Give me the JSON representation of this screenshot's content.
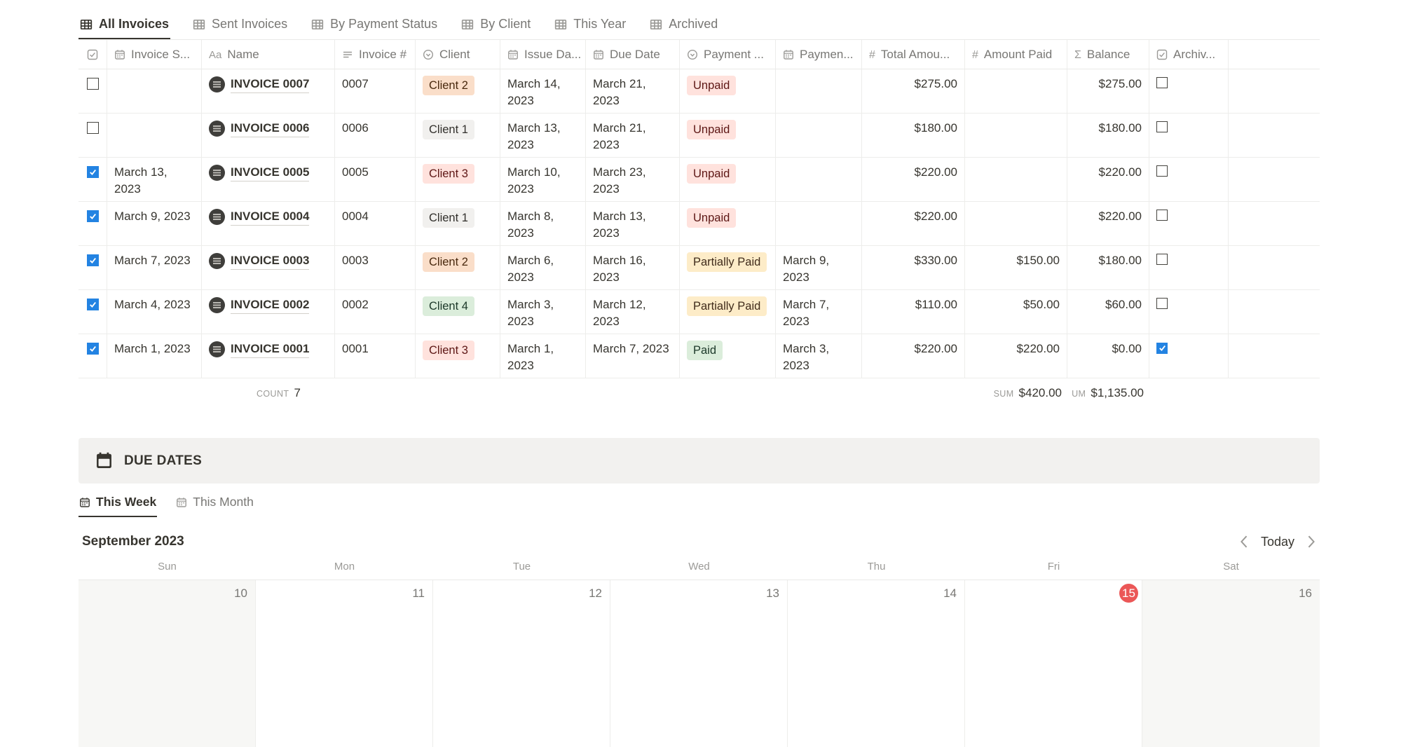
{
  "colors": {
    "accent_blue": "#2383E2",
    "today_red": "#EB5757",
    "active_text": "#37352F",
    "muted_text": "#787774",
    "tags": {
      "orange": {
        "bg": "#FADEC9",
        "text": "#49290E"
      },
      "gray": {
        "bg": "#F1F0EE",
        "text": "#32302C"
      },
      "red": {
        "bg": "#FFE2DD",
        "text": "#5D1715"
      },
      "green": {
        "bg": "#DBEDDB",
        "text": "#1C3829"
      },
      "yellow": {
        "bg": "#FDECC8",
        "text": "#402C1B"
      }
    }
  },
  "view_tabs": [
    {
      "label": "All Invoices",
      "icon": "table-icon",
      "active": true
    },
    {
      "label": "Sent Invoices",
      "icon": "table-icon",
      "active": false
    },
    {
      "label": "By Payment Status",
      "icon": "table-icon",
      "active": false
    },
    {
      "label": "By Client",
      "icon": "table-icon",
      "active": false
    },
    {
      "label": "This Year",
      "icon": "table-icon",
      "active": false
    },
    {
      "label": "Archived",
      "icon": "table-icon",
      "active": false
    }
  ],
  "table": {
    "columns": [
      {
        "key": "select",
        "label": "",
        "icon": "checkbox-icon"
      },
      {
        "key": "invoice_sent",
        "label": "Invoice S...",
        "icon": "calendar-icon"
      },
      {
        "key": "name",
        "label": "Name",
        "icon": "aa-icon"
      },
      {
        "key": "invoice_num",
        "label": "Invoice #",
        "icon": "lines-icon"
      },
      {
        "key": "client",
        "label": "Client",
        "icon": "select-icon"
      },
      {
        "key": "issue_date",
        "label": "Issue Da...",
        "icon": "calendar-icon"
      },
      {
        "key": "due_date",
        "label": "Due Date",
        "icon": "calendar-icon"
      },
      {
        "key": "payment_status",
        "label": "Payment ...",
        "icon": "select-icon"
      },
      {
        "key": "payment_date",
        "label": "Paymen...",
        "icon": "calendar-icon"
      },
      {
        "key": "total_amount",
        "label": "Total Amou...",
        "icon": "hash-icon",
        "align": "num"
      },
      {
        "key": "amount_paid",
        "label": "Amount Paid",
        "icon": "hash-icon",
        "align": "num"
      },
      {
        "key": "balance",
        "label": "Balance",
        "icon": "sigma-icon",
        "align": "num"
      },
      {
        "key": "archived",
        "label": "Archiv...",
        "icon": "checkbox-icon"
      },
      {
        "key": "spacer",
        "label": "",
        "icon": ""
      }
    ],
    "rows": [
      {
        "selected": false,
        "invoice_sent": "",
        "name": "INVOICE 0007",
        "invoice_num": "0007",
        "client": {
          "label": "Client 2",
          "color": "orange"
        },
        "issue_date": "March 14, 2023",
        "due_date": "March 21, 2023",
        "payment_status": {
          "label": "Unpaid",
          "color": "red"
        },
        "payment_date": "",
        "total_amount": "$275.00",
        "amount_paid": "",
        "balance": "$275.00",
        "archived": false
      },
      {
        "selected": false,
        "invoice_sent": "",
        "name": "INVOICE 0006",
        "invoice_num": "0006",
        "client": {
          "label": "Client 1",
          "color": "gray"
        },
        "issue_date": "March 13, 2023",
        "due_date": "March 21, 2023",
        "payment_status": {
          "label": "Unpaid",
          "color": "red"
        },
        "payment_date": "",
        "total_amount": "$180.00",
        "amount_paid": "",
        "balance": "$180.00",
        "archived": false
      },
      {
        "selected": true,
        "invoice_sent": "March 13, 2023",
        "name": "INVOICE 0005",
        "invoice_num": "0005",
        "client": {
          "label": "Client 3",
          "color": "red"
        },
        "issue_date": "March 10, 2023",
        "due_date": "March 23, 2023",
        "payment_status": {
          "label": "Unpaid",
          "color": "red"
        },
        "payment_date": "",
        "total_amount": "$220.00",
        "amount_paid": "",
        "balance": "$220.00",
        "archived": false
      },
      {
        "selected": true,
        "invoice_sent": "March 9, 2023",
        "name": "INVOICE 0004",
        "invoice_num": "0004",
        "client": {
          "label": "Client 1",
          "color": "gray"
        },
        "issue_date": "March 8, 2023",
        "due_date": "March 13, 2023",
        "payment_status": {
          "label": "Unpaid",
          "color": "red"
        },
        "payment_date": "",
        "total_amount": "$220.00",
        "amount_paid": "",
        "balance": "$220.00",
        "archived": false
      },
      {
        "selected": true,
        "invoice_sent": "March 7, 2023",
        "name": "INVOICE 0003",
        "invoice_num": "0003",
        "client": {
          "label": "Client 2",
          "color": "orange"
        },
        "issue_date": "March 6, 2023",
        "due_date": "March 16, 2023",
        "payment_status": {
          "label": "Partially Paid",
          "color": "yellow"
        },
        "payment_date": "March 9, 2023",
        "total_amount": "$330.00",
        "amount_paid": "$150.00",
        "balance": "$180.00",
        "archived": false
      },
      {
        "selected": true,
        "invoice_sent": "March 4, 2023",
        "name": "INVOICE 0002",
        "invoice_num": "0002",
        "client": {
          "label": "Client 4",
          "color": "green"
        },
        "issue_date": "March 3, 2023",
        "due_date": "March 12, 2023",
        "payment_status": {
          "label": "Partially Paid",
          "color": "yellow"
        },
        "payment_date": "March 7, 2023",
        "total_amount": "$110.00",
        "amount_paid": "$50.00",
        "balance": "$60.00",
        "archived": false
      },
      {
        "selected": true,
        "invoice_sent": "March 1, 2023",
        "name": "INVOICE 0001",
        "invoice_num": "0001",
        "client": {
          "label": "Client 3",
          "color": "red"
        },
        "issue_date": "March 1, 2023",
        "due_date": "March 7, 2023",
        "payment_status": {
          "label": "Paid",
          "color": "green"
        },
        "payment_date": "March 3, 2023",
        "total_amount": "$220.00",
        "amount_paid": "$220.00",
        "balance": "$0.00",
        "archived": true
      }
    ],
    "footer": {
      "count_label": "COUNT",
      "count_value": "7",
      "sum_label": "SUM",
      "sum_value": "$420.00",
      "sum2_label": "UM",
      "sum2_value": "$1,135.00"
    }
  },
  "due_dates": {
    "title": "DUE DATES",
    "tabs": [
      {
        "label": "This Week",
        "icon": "calendar-icon",
        "active": true
      },
      {
        "label": "This Month",
        "icon": "calendar-icon",
        "active": false
      }
    ],
    "calendar": {
      "month_label": "September 2023",
      "today_label": "Today",
      "day_headers": [
        "Sun",
        "Mon",
        "Tue",
        "Wed",
        "Thu",
        "Fri",
        "Sat"
      ],
      "dates": [
        {
          "day": "10",
          "weekend": true,
          "today": false
        },
        {
          "day": "11",
          "weekend": false,
          "today": false
        },
        {
          "day": "12",
          "weekend": false,
          "today": false
        },
        {
          "day": "13",
          "weekend": false,
          "today": false
        },
        {
          "day": "14",
          "weekend": false,
          "today": false
        },
        {
          "day": "15",
          "weekend": false,
          "today": true
        },
        {
          "day": "16",
          "weekend": true,
          "today": false
        }
      ]
    }
  }
}
